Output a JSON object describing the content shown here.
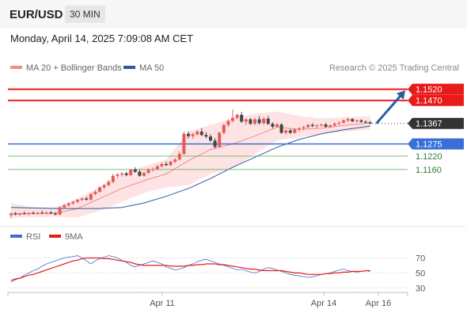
{
  "header": {
    "symbol": "EUR/USD",
    "timeframe": "30 MIN",
    "datetime": "Monday, April 14, 2025 7:09:08 AM CET"
  },
  "research": "Research © 2025 Trading Central",
  "colors": {
    "bullish": "#e8595a",
    "bearish": "#444444",
    "resistance": "#e81b1b",
    "support_current": "#3a6fd8",
    "support": "#4caf50",
    "ma50": "#2c5a9e",
    "bollinger_fill": "#fde3e3",
    "rsi": "#3a6fd8",
    "rsi_ma": "#e81b1b",
    "arrow": "#2c5a9e"
  },
  "chart_data": [
    {
      "type": "candlestick",
      "legend": [
        {
          "name": "MA 20 + Bollinger Bands",
          "color": "#f28c8c"
        },
        {
          "name": "MA 50",
          "color": "#2c5a9e"
        }
      ],
      "ylim": [
        1.0925,
        1.1565
      ],
      "x_labels": [
        "Apr 11",
        "Apr 14",
        "Apr 16"
      ],
      "levels": [
        {
          "label": "1.1520",
          "value": 1.152,
          "style": "resistance"
        },
        {
          "label": "1.1470",
          "value": 1.147,
          "style": "resistance"
        },
        {
          "label": "1.1367",
          "value": 1.1367,
          "style": "current"
        },
        {
          "label": "1.1275",
          "value": 1.1275,
          "style": "support_current"
        },
        {
          "label": "1.1220",
          "value": 1.122,
          "style": "support"
        },
        {
          "label": "1.1160",
          "value": 1.116,
          "style": "support"
        }
      ],
      "candles_ohlc": [
        [
          1.0955,
          1.0968,
          1.0942,
          1.0962
        ],
        [
          1.0962,
          1.097,
          1.0955,
          1.0958
        ],
        [
          1.0958,
          1.0966,
          1.0952,
          1.0963
        ],
        [
          1.0963,
          1.0972,
          1.0958,
          1.096
        ],
        [
          1.096,
          1.0968,
          1.0955,
          1.0965
        ],
        [
          1.0965,
          1.0972,
          1.0959,
          1.0962
        ],
        [
          1.0962,
          1.097,
          1.0957,
          1.0966
        ],
        [
          1.0966,
          1.0975,
          1.096,
          1.0963
        ],
        [
          1.0963,
          1.0971,
          1.0958,
          1.0967
        ],
        [
          1.0967,
          1.0974,
          1.0961,
          1.0962
        ],
        [
          1.0962,
          1.0969,
          1.0955,
          1.0958
        ],
        [
          1.0958,
          1.0995,
          1.0955,
          1.099
        ],
        [
          1.099,
          1.1005,
          1.0985,
          1.1
        ],
        [
          1.1,
          1.1012,
          1.0992,
          1.1008
        ],
        [
          1.1008,
          1.102,
          1.1,
          1.1015
        ],
        [
          1.1015,
          1.1028,
          1.1008,
          1.1024
        ],
        [
          1.1024,
          1.1035,
          1.1018,
          1.103
        ],
        [
          1.103,
          1.1038,
          1.102,
          1.1025
        ],
        [
          1.1025,
          1.1055,
          1.102,
          1.105
        ],
        [
          1.105,
          1.1068,
          1.1045,
          1.106
        ],
        [
          1.106,
          1.1085,
          1.1055,
          1.108
        ],
        [
          1.108,
          1.1095,
          1.1072,
          1.109
        ],
        [
          1.109,
          1.1112,
          1.1085,
          1.1105
        ],
        [
          1.1105,
          1.114,
          1.1098,
          1.1132
        ],
        [
          1.1132,
          1.1145,
          1.1122,
          1.1138
        ],
        [
          1.1138,
          1.115,
          1.1128,
          1.1142
        ],
        [
          1.1142,
          1.115,
          1.113,
          1.1135
        ],
        [
          1.1135,
          1.1162,
          1.113,
          1.116
        ],
        [
          1.116,
          1.117,
          1.1145,
          1.115
        ],
        [
          1.115,
          1.1158,
          1.1128,
          1.1132
        ],
        [
          1.1132,
          1.115,
          1.1128,
          1.1145
        ],
        [
          1.1145,
          1.1165,
          1.114,
          1.116
        ],
        [
          1.116,
          1.117,
          1.115,
          1.1162
        ],
        [
          1.1162,
          1.118,
          1.1158,
          1.1175
        ],
        [
          1.1175,
          1.119,
          1.1168,
          1.1185
        ],
        [
          1.1185,
          1.1195,
          1.1175,
          1.118
        ],
        [
          1.118,
          1.12,
          1.1175,
          1.1195
        ],
        [
          1.1195,
          1.121,
          1.1188,
          1.1205
        ],
        [
          1.1205,
          1.124,
          1.12,
          1.123
        ],
        [
          1.123,
          1.133,
          1.1225,
          1.132
        ],
        [
          1.132,
          1.133,
          1.13,
          1.131
        ],
        [
          1.131,
          1.1325,
          1.1298,
          1.1318
        ],
        [
          1.1318,
          1.1338,
          1.1312,
          1.133
        ],
        [
          1.133,
          1.1345,
          1.131,
          1.1315
        ],
        [
          1.1315,
          1.1328,
          1.13,
          1.1308
        ],
        [
          1.1308,
          1.1318,
          1.1285,
          1.129
        ],
        [
          1.129,
          1.13,
          1.1255,
          1.1262
        ],
        [
          1.1262,
          1.133,
          1.1258,
          1.1325
        ],
        [
          1.1325,
          1.1365,
          1.1318,
          1.136
        ],
        [
          1.136,
          1.1385,
          1.135,
          1.1378
        ],
        [
          1.1378,
          1.143,
          1.1372,
          1.1392
        ],
        [
          1.1392,
          1.1412,
          1.1385,
          1.1405
        ],
        [
          1.1405,
          1.1418,
          1.137,
          1.1375
        ],
        [
          1.1375,
          1.139,
          1.136,
          1.1385
        ],
        [
          1.1385,
          1.1392,
          1.136,
          1.1365
        ],
        [
          1.1365,
          1.1392,
          1.136,
          1.1385
        ],
        [
          1.1385,
          1.14,
          1.1362,
          1.1368
        ],
        [
          1.1368,
          1.1395,
          1.136,
          1.1388
        ],
        [
          1.1388,
          1.14,
          1.136,
          1.1365
        ],
        [
          1.1365,
          1.1372,
          1.1345,
          1.1352
        ],
        [
          1.1352,
          1.1368,
          1.1348,
          1.1362
        ],
        [
          1.1362,
          1.1368,
          1.132,
          1.1325
        ],
        [
          1.1325,
          1.134,
          1.1318,
          1.1335
        ],
        [
          1.1335,
          1.1342,
          1.132,
          1.1325
        ],
        [
          1.1325,
          1.1345,
          1.132,
          1.134
        ],
        [
          1.134,
          1.135,
          1.133,
          1.1345
        ],
        [
          1.1345,
          1.1356,
          1.1336,
          1.135
        ],
        [
          1.135,
          1.1365,
          1.1345,
          1.136
        ],
        [
          1.136,
          1.1368,
          1.135,
          1.1355
        ],
        [
          1.1355,
          1.1362,
          1.1345,
          1.1358
        ],
        [
          1.1358,
          1.1366,
          1.1352,
          1.1362
        ],
        [
          1.1362,
          1.137,
          1.1348,
          1.1352
        ],
        [
          1.1352,
          1.1362,
          1.1346,
          1.1358
        ],
        [
          1.1358,
          1.1372,
          1.1352,
          1.1366
        ],
        [
          1.1366,
          1.1376,
          1.1358,
          1.137
        ],
        [
          1.137,
          1.1385,
          1.1365,
          1.138
        ],
        [
          1.138,
          1.1392,
          1.1372,
          1.1386
        ],
        [
          1.1386,
          1.139,
          1.1372,
          1.1376
        ],
        [
          1.1376,
          1.1384,
          1.137,
          1.138
        ],
        [
          1.138,
          1.1386,
          1.137,
          1.1374
        ],
        [
          1.1374,
          1.138,
          1.1366,
          1.1372
        ],
        [
          1.1372,
          1.1378,
          1.1362,
          1.1367
        ]
      ],
      "ma20": [
        [
          0,
          1.0962
        ],
        [
          5,
          1.0963
        ],
        [
          10,
          1.0963
        ],
        [
          15,
          1.0985
        ],
        [
          20,
          1.103
        ],
        [
          25,
          1.1075
        ],
        [
          30,
          1.111
        ],
        [
          35,
          1.114
        ],
        [
          40,
          1.12
        ],
        [
          45,
          1.125
        ],
        [
          50,
          1.1275
        ],
        [
          55,
          1.131
        ],
        [
          60,
          1.135
        ],
        [
          65,
          1.134
        ],
        [
          70,
          1.1345
        ],
        [
          75,
          1.1358
        ],
        [
          81,
          1.1368
        ]
      ],
      "bollinger_upper": [
        [
          0,
          1.101
        ],
        [
          5,
          1.099
        ],
        [
          10,
          1.099
        ],
        [
          15,
          1.103
        ],
        [
          20,
          1.108
        ],
        [
          25,
          1.114
        ],
        [
          30,
          1.1175
        ],
        [
          35,
          1.1205
        ],
        [
          40,
          1.133
        ],
        [
          45,
          1.136
        ],
        [
          50,
          1.139
        ],
        [
          55,
          1.141
        ],
        [
          60,
          1.142
        ],
        [
          65,
          1.14
        ],
        [
          70,
          1.139
        ],
        [
          75,
          1.1395
        ],
        [
          81,
          1.14
        ]
      ],
      "bollinger_lower": [
        [
          0,
          1.0945
        ],
        [
          5,
          1.0945
        ],
        [
          10,
          1.0948
        ],
        [
          15,
          1.0945
        ],
        [
          20,
          1.0975
        ],
        [
          25,
          1.1015
        ],
        [
          30,
          1.1055
        ],
        [
          35,
          1.108
        ],
        [
          40,
          1.109
        ],
        [
          45,
          1.114
        ],
        [
          50,
          1.1165
        ],
        [
          55,
          1.123
        ],
        [
          60,
          1.129
        ],
        [
          65,
          1.1305
        ],
        [
          70,
          1.132
        ],
        [
          75,
          1.133
        ],
        [
          81,
          1.134
        ]
      ],
      "ma50": [
        [
          0,
          1.099
        ],
        [
          10,
          1.0985
        ],
        [
          20,
          1.0985
        ],
        [
          25,
          1.099
        ],
        [
          30,
          1.101
        ],
        [
          35,
          1.104
        ],
        [
          40,
          1.1075
        ],
        [
          45,
          1.112
        ],
        [
          50,
          1.117
        ],
        [
          55,
          1.1215
        ],
        [
          60,
          1.126
        ],
        [
          65,
          1.1295
        ],
        [
          70,
          1.132
        ],
        [
          75,
          1.1338
        ],
        [
          81,
          1.1355
        ]
      ],
      "projection": {
        "from": [
          1.1367
        ],
        "to": [
          1.152
        ]
      }
    },
    {
      "type": "line",
      "title": "RSI",
      "ylim": [
        25,
        80
      ],
      "yticks": [
        70,
        50,
        30
      ],
      "series": [
        {
          "name": "RSI",
          "values": [
            38,
            41,
            43,
            47,
            50,
            53,
            55,
            59,
            62,
            64,
            66,
            68,
            70,
            71,
            72,
            73,
            70,
            66,
            62,
            66,
            69,
            71,
            73,
            72,
            70,
            67,
            64,
            60,
            58,
            60,
            62,
            64,
            66,
            64,
            62,
            58,
            56,
            54,
            55,
            57,
            60,
            62,
            65,
            67,
            68,
            66,
            64,
            62,
            60,
            58,
            56,
            54,
            55,
            53,
            51,
            50,
            52,
            55,
            57,
            56,
            54,
            52,
            50,
            48,
            47,
            46,
            45,
            44,
            45,
            46,
            48,
            49,
            50,
            52,
            54,
            55,
            53,
            52,
            51,
            52,
            53,
            52
          ]
        },
        {
          "name": "9MA",
          "values": [
            40,
            42,
            43,
            45,
            47,
            48,
            50,
            52,
            54,
            56,
            58,
            60,
            62,
            64,
            66,
            67,
            69,
            70,
            70,
            70,
            70,
            69,
            69,
            68,
            67,
            66,
            65,
            64,
            62,
            61,
            60,
            60,
            60,
            60,
            60,
            60,
            59,
            59,
            59,
            59,
            60,
            60,
            61,
            61,
            62,
            62,
            62,
            61,
            61,
            60,
            59,
            58,
            57,
            56,
            55,
            55,
            54,
            53,
            53,
            53,
            53,
            53,
            52,
            51,
            50,
            50,
            49,
            48,
            48,
            48,
            48,
            49,
            49,
            50,
            50,
            51,
            51,
            52,
            52,
            52,
            53,
            53
          ]
        }
      ]
    }
  ]
}
